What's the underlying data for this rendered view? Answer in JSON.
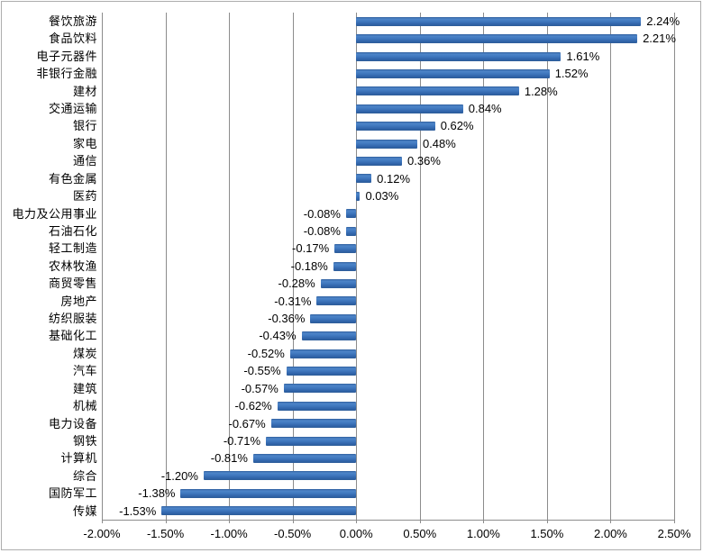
{
  "chart_data": {
    "type": "bar",
    "orientation": "horizontal",
    "title": "",
    "xlabel": "",
    "ylabel": "",
    "categories": [
      "餐饮旅游",
      "食品饮料",
      "电子元器件",
      "非银行金融",
      "建材",
      "交通运输",
      "银行",
      "家电",
      "通信",
      "有色金属",
      "医药",
      "电力及公用事业",
      "石油石化",
      "轻工制造",
      "农林牧渔",
      "商贸零售",
      "房地产",
      "纺织服装",
      "基础化工",
      "煤炭",
      "汽车",
      "建筑",
      "机械",
      "电力设备",
      "钢铁",
      "计算机",
      "综合",
      "国防军工",
      "传媒"
    ],
    "values": [
      2.24,
      2.21,
      1.61,
      1.52,
      1.28,
      0.84,
      0.62,
      0.48,
      0.36,
      0.12,
      0.03,
      -0.08,
      -0.08,
      -0.17,
      -0.18,
      -0.28,
      -0.31,
      -0.36,
      -0.43,
      -0.52,
      -0.55,
      -0.57,
      -0.62,
      -0.67,
      -0.71,
      -0.81,
      -1.2,
      -1.38,
      -1.53
    ],
    "value_labels": [
      "2.24%",
      "2.21%",
      "1.61%",
      "1.52%",
      "1.28%",
      "0.84%",
      "0.62%",
      "0.48%",
      "0.36%",
      "0.12%",
      "0.03%",
      "-0.08%",
      "-0.08%",
      "-0.17%",
      "-0.18%",
      "-0.28%",
      "-0.31%",
      "-0.36%",
      "-0.43%",
      "-0.52%",
      "-0.55%",
      "-0.57%",
      "-0.62%",
      "-0.67%",
      "-0.71%",
      "-0.81%",
      "-1.20%",
      "-1.38%",
      "-1.53%"
    ],
    "xlim": [
      -2.0,
      2.5
    ],
    "xticks": [
      -2.0,
      -1.5,
      -1.0,
      -0.5,
      0.0,
      0.5,
      1.0,
      1.5,
      2.0,
      2.5
    ],
    "xtick_labels": [
      "-2.00%",
      "-1.50%",
      "-1.00%",
      "-0.50%",
      "0.00%",
      "0.50%",
      "1.00%",
      "1.50%",
      "2.00%",
      "2.50%"
    ],
    "grid": "vertical",
    "legend": "none",
    "data_labels": "shown-outside-end",
    "colors": {
      "bar": "#3C74BC",
      "bar_gradient_top": "#2F5F9D",
      "bar_gradient_highlight": "#4E85C8",
      "bar_gradient_bottom": "#2D5C98",
      "gridline": "#8C8C8C",
      "axis_text": "#000000",
      "chart_border": "#ADADAD",
      "background": "#FFFFFF"
    }
  }
}
